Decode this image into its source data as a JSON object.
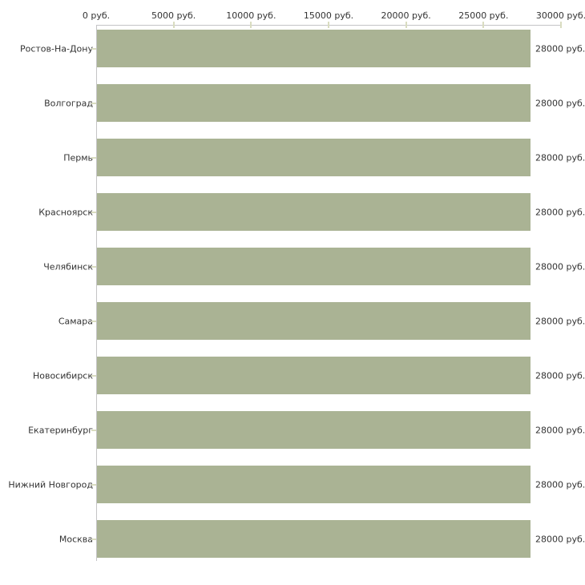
{
  "chart_data": {
    "type": "bar",
    "orientation": "horizontal",
    "title": "",
    "categories": [
      "Ростов-На-Дону",
      "Волгоград",
      "Пермь",
      "Красноярск",
      "Челябинск",
      "Самара",
      "Новосибирск",
      "Екатеринбург",
      "Нижний Новгород",
      "Москва"
    ],
    "values": [
      28000,
      28000,
      28000,
      28000,
      28000,
      28000,
      28000,
      28000,
      28000,
      28000
    ],
    "value_labels": [
      "28000 руб.",
      "28000 руб.",
      "28000 руб.",
      "28000 руб.",
      "28000 руб.",
      "28000 руб.",
      "28000 руб.",
      "28000 руб.",
      "28000 руб.",
      "28000 руб."
    ],
    "x_axis": {
      "position": "top",
      "min": 0,
      "max": 30000,
      "unit": "руб.",
      "ticks": [
        0,
        5000,
        10000,
        15000,
        20000,
        25000,
        30000
      ],
      "tick_labels": [
        "0 руб.",
        "5000 руб.",
        "10000 руб.",
        "15000 руб.",
        "20000 руб.",
        "25000 руб.",
        "30000 руб."
      ]
    },
    "grid": false,
    "legend": false,
    "colors": {
      "bar": "#aab394",
      "axis_line": "#c4c4c6",
      "tick_mark": "#d9dcc0",
      "text": "#333333",
      "background": "#ffffff"
    }
  }
}
